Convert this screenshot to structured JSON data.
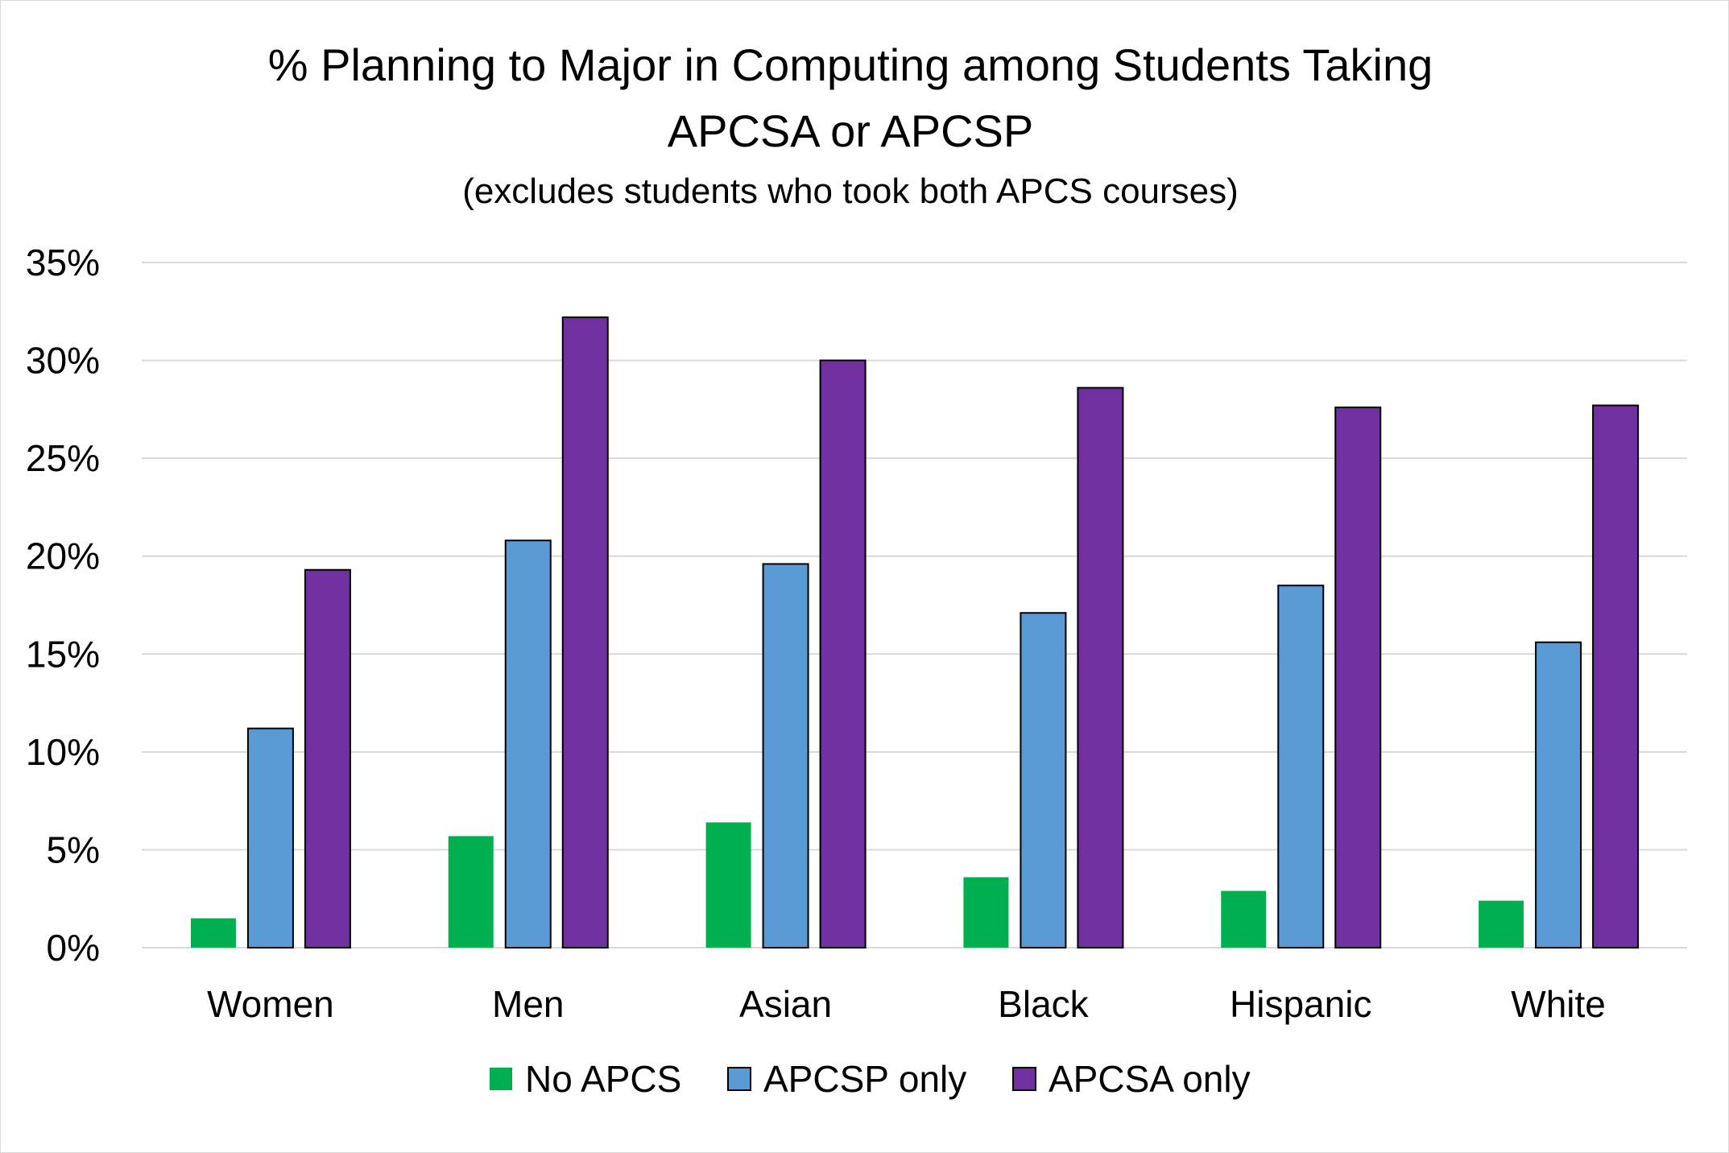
{
  "chart_data": {
    "type": "bar",
    "title": "% Planning to Major in Computing among Students Taking",
    "title_line2": "APCSA or APCSP",
    "subtitle": "(excludes students who took both APCS courses)",
    "xlabel": "",
    "ylabel": "",
    "ylim": [
      0,
      35
    ],
    "y_ticks": [
      "0%",
      "5%",
      "10%",
      "15%",
      "20%",
      "25%",
      "30%",
      "35%"
    ],
    "grid": true,
    "legend_position": "bottom",
    "categories": [
      "Women",
      "Men",
      "Asian",
      "Black",
      "Hispanic",
      "White"
    ],
    "series": [
      {
        "name": "No APCS",
        "color": "#00b050",
        "outlined": false,
        "values": [
          1.5,
          5.7,
          6.4,
          3.6,
          2.9,
          2.4
        ]
      },
      {
        "name": "APCSP only",
        "color": "#5b9bd5",
        "outlined": true,
        "values": [
          11.2,
          20.8,
          19.6,
          17.1,
          18.5,
          15.6
        ]
      },
      {
        "name": "APCSA only",
        "color": "#7030a0",
        "outlined": true,
        "values": [
          19.3,
          32.2,
          30.0,
          28.6,
          27.6,
          27.7
        ]
      }
    ]
  }
}
